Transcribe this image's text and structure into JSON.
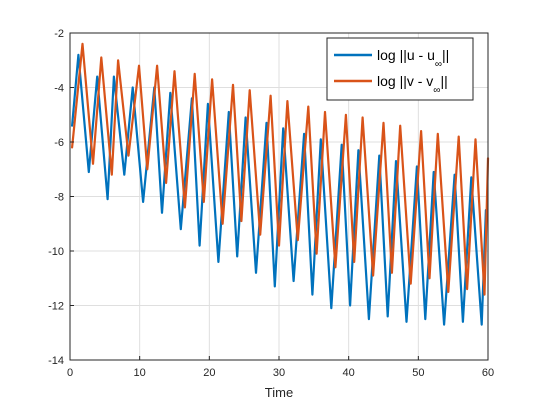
{
  "chart_data": {
    "type": "line",
    "xlabel": "Time",
    "ylabel": "",
    "xlim": [
      0,
      60
    ],
    "ylim": [
      -14,
      -2
    ],
    "xticks": [
      "0",
      "10",
      "20",
      "30",
      "40",
      "50",
      "60"
    ],
    "yticks": [
      "-14",
      "-12",
      "-10",
      "-8",
      "-6",
      "-4",
      "-2"
    ],
    "grid": true,
    "legend_position": "top-right",
    "series": [
      {
        "name": "log ||u - u∞||",
        "legend_main": "log ||u - u",
        "legend_sub": "∞",
        "legend_tail": "||",
        "color": "#0072BD",
        "x": [
          0.3,
          1.2,
          2.7,
          3.9,
          5.4,
          6.3,
          7.8,
          9.0,
          10.5,
          12.1,
          13.2,
          14.4,
          15.9,
          17.5,
          18.6,
          19.8,
          21.3,
          22.8,
          24.0,
          25.2,
          26.7,
          28.2,
          29.4,
          30.6,
          32.1,
          33.6,
          34.8,
          36.0,
          37.5,
          39.0,
          40.2,
          41.4,
          42.9,
          44.4,
          45.6,
          46.8,
          48.3,
          49.8,
          51.0,
          52.2,
          53.7,
          55.2,
          56.4,
          57.6,
          59.1,
          59.7
        ],
        "y": [
          -5.4,
          -2.8,
          -7.1,
          -3.6,
          -8.1,
          -3.6,
          -7.2,
          -4.0,
          -8.2,
          -4.0,
          -8.6,
          -4.2,
          -9.2,
          -4.4,
          -9.8,
          -4.6,
          -10.4,
          -4.9,
          -10.2,
          -5.1,
          -10.8,
          -5.3,
          -11.3,
          -5.5,
          -11.1,
          -5.7,
          -11.6,
          -5.9,
          -12.1,
          -6.1,
          -12.0,
          -6.3,
          -12.5,
          -6.5,
          -12.4,
          -6.7,
          -12.6,
          -6.9,
          -12.5,
          -7.1,
          -12.7,
          -7.2,
          -12.6,
          -7.3,
          -12.7,
          -8.5
        ]
      },
      {
        "name": "log ||v - v∞||",
        "legend_main": "log ||v - v",
        "legend_sub": "∞",
        "legend_tail": "||",
        "color": "#D95319",
        "x": [
          0.3,
          1.8,
          3.3,
          4.5,
          6.0,
          6.9,
          8.4,
          9.9,
          11.1,
          12.5,
          13.8,
          15.0,
          16.5,
          17.9,
          19.2,
          20.4,
          21.9,
          23.4,
          24.6,
          25.8,
          27.3,
          28.8,
          30.0,
          31.2,
          32.7,
          34.2,
          35.4,
          36.6,
          38.1,
          39.6,
          40.8,
          42.0,
          43.5,
          45.0,
          46.2,
          47.4,
          48.9,
          50.4,
          51.6,
          52.8,
          54.3,
          55.8,
          57.0,
          58.2,
          59.5,
          60.0
        ],
        "y": [
          -6.2,
          -2.4,
          -6.8,
          -2.9,
          -7.2,
          -3.0,
          -6.5,
          -3.2,
          -7.0,
          -3.2,
          -7.5,
          -3.4,
          -8.4,
          -3.5,
          -8.2,
          -3.7,
          -9.0,
          -3.9,
          -8.9,
          -4.1,
          -9.4,
          -4.3,
          -9.8,
          -4.5,
          -9.6,
          -4.7,
          -10.1,
          -4.9,
          -10.6,
          -5.0,
          -10.4,
          -5.1,
          -10.9,
          -5.3,
          -10.8,
          -5.4,
          -11.2,
          -5.6,
          -11.0,
          -5.7,
          -11.5,
          -5.8,
          -11.4,
          -5.9,
          -11.6,
          -6.6
        ]
      }
    ]
  }
}
